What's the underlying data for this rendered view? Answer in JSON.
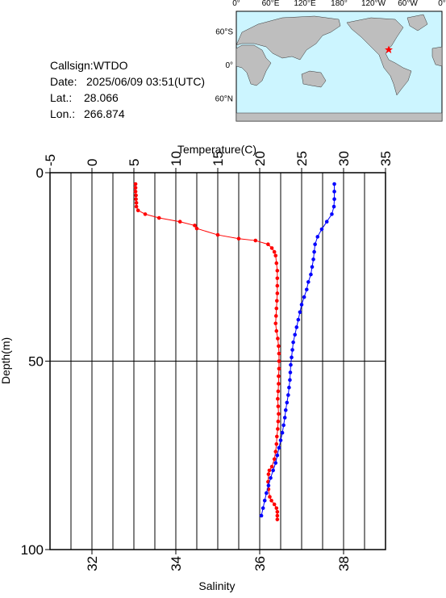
{
  "header": {
    "callsign": "Callsign:WTDO",
    "date_label": "Date:",
    "date": "2025/06/09 03:51(UTC)",
    "lat_label": "Lat.:",
    "lat": 28.066,
    "lon_label": "Lon.:",
    "lon": 266.874
  },
  "map": {
    "x_labels": [
      "0°",
      "60°E",
      "120°E",
      "180°",
      "120°W",
      "60°W",
      "0°"
    ],
    "y_labels": [
      "60°N",
      "0°",
      "60°S"
    ]
  },
  "chart_data": {
    "type": "line",
    "ylabel": "Depth(m)",
    "ylim": [
      0,
      100
    ],
    "yticks": [
      0,
      50,
      100
    ],
    "y_inverted": true,
    "xlabel": "Salinity",
    "xlim": [
      31,
      39
    ],
    "xticks": [
      32,
      34,
      36,
      38
    ],
    "xgrid": [
      31.5,
      32,
      32.5,
      33,
      33.5,
      34,
      34.5,
      35,
      35.5,
      36,
      36.5,
      37,
      37.5,
      38,
      38.5
    ],
    "x2label": "Temperature(C)",
    "x2lim": [
      -5,
      35
    ],
    "x2ticks": [
      -5,
      0,
      5,
      10,
      15,
      20,
      25,
      30,
      35
    ],
    "ygrid": [
      50
    ],
    "series": [
      {
        "color": "#ff0000",
        "axis": "x",
        "depth": [
          3,
          4,
          5,
          6,
          7,
          8,
          9,
          10,
          11,
          12,
          13,
          14,
          14.8,
          16.5,
          17.5,
          18,
          19,
          20,
          21,
          22,
          24,
          26,
          28,
          30,
          32,
          34,
          36,
          38,
          40,
          42,
          44,
          46,
          48,
          50,
          52,
          54,
          56,
          58,
          60,
          62,
          64,
          66,
          68,
          70,
          72,
          74,
          76,
          78,
          79,
          80,
          82,
          84,
          86,
          87,
          88,
          89,
          90,
          91,
          92
        ],
        "values": [
          33.04,
          33.04,
          33.04,
          33.05,
          33.05,
          33.06,
          33.06,
          33.1,
          33.27,
          33.6,
          34.1,
          34.45,
          34.5,
          35.0,
          35.5,
          35.9,
          36.2,
          36.29,
          36.35,
          36.38,
          36.4,
          36.42,
          36.42,
          36.42,
          36.42,
          36.41,
          36.4,
          36.39,
          36.38,
          36.4,
          36.43,
          36.45,
          36.46,
          36.46,
          36.46,
          36.45,
          36.45,
          36.44,
          36.43,
          36.44,
          36.45,
          36.44,
          36.43,
          36.41,
          36.4,
          36.38,
          36.35,
          36.29,
          36.23,
          36.21,
          36.2,
          36.21,
          36.24,
          36.28,
          36.35,
          36.4,
          36.42,
          36.42,
          36.42
        ]
      },
      {
        "color": "#0000ff",
        "axis": "x2",
        "depth": [
          3,
          5,
          7,
          9,
          11,
          13,
          15,
          17,
          19,
          21,
          23,
          25,
          27,
          29,
          31,
          33,
          35,
          37,
          39,
          41,
          43,
          45,
          47,
          49,
          51,
          53,
          55,
          57,
          59,
          61,
          63,
          65,
          67,
          69,
          71,
          73,
          75,
          77,
          79,
          81,
          83,
          85,
          87,
          89,
          91
        ],
        "values": [
          28.9,
          28.9,
          28.9,
          28.85,
          28.6,
          28.0,
          27.4,
          26.9,
          26.6,
          26.5,
          26.4,
          26.25,
          26.1,
          25.8,
          25.6,
          25.3,
          25.0,
          24.8,
          24.6,
          24.4,
          24.2,
          24.0,
          23.9,
          23.8,
          23.7,
          23.65,
          23.6,
          23.5,
          23.4,
          23.25,
          23.1,
          23.0,
          22.85,
          22.7,
          22.5,
          22.3,
          22.1,
          21.9,
          21.6,
          21.3,
          21.05,
          20.8,
          20.6,
          20.4,
          20.2
        ]
      }
    ]
  }
}
